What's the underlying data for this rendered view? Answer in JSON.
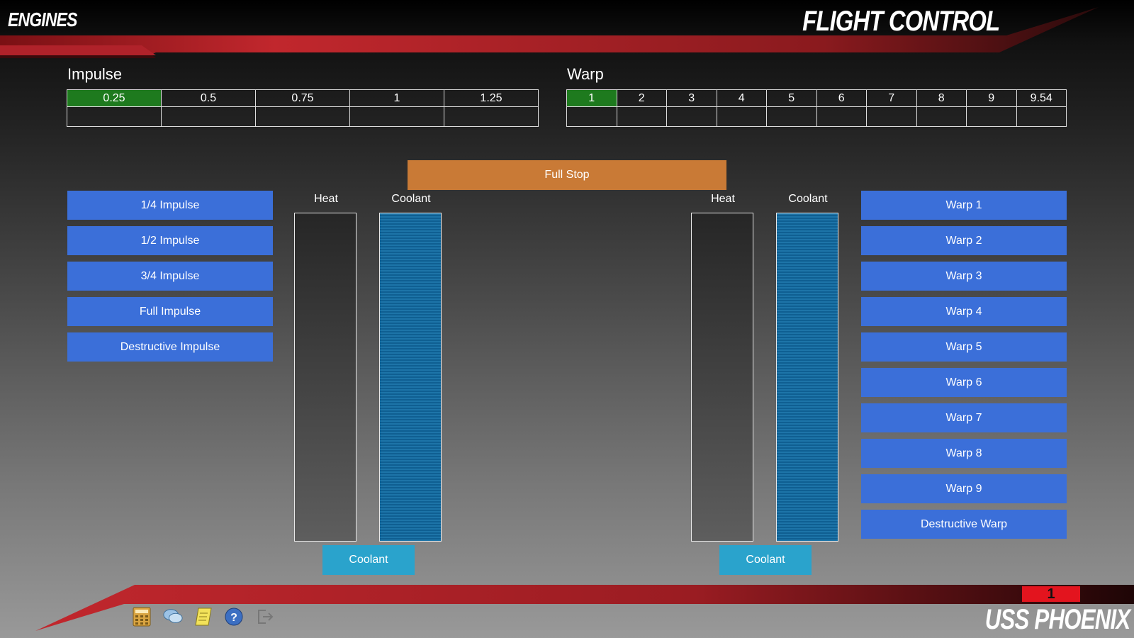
{
  "header": {
    "station": "ENGINES",
    "screen": "FLIGHT CONTROL"
  },
  "impulse": {
    "title": "Impulse",
    "speeds": [
      "0.25",
      "0.5",
      "0.75",
      "1",
      "1.25"
    ],
    "active_index": 0,
    "buttons": [
      "1/4 Impulse",
      "1/2 Impulse",
      "3/4 Impulse",
      "Full Impulse",
      "Destructive Impulse"
    ],
    "heat_label": "Heat",
    "coolant_label": "Coolant",
    "heat_level": 0.0,
    "coolant_level": 1.0,
    "coolant_button": "Coolant"
  },
  "warp": {
    "title": "Warp",
    "speeds": [
      "1",
      "2",
      "3",
      "4",
      "5",
      "6",
      "7",
      "8",
      "9",
      "9.54"
    ],
    "active_index": 0,
    "buttons": [
      "Warp 1",
      "Warp 2",
      "Warp 3",
      "Warp 4",
      "Warp 5",
      "Warp 6",
      "Warp 7",
      "Warp 8",
      "Warp 9",
      "Destructive Warp"
    ],
    "heat_label": "Heat",
    "coolant_label": "Coolant",
    "heat_level": 0.0,
    "coolant_level": 1.0,
    "coolant_button": "Coolant"
  },
  "full_stop": "Full Stop",
  "footer": {
    "alert": "1",
    "ship": "USS PHOENIX",
    "toolbar_icons": [
      "calculator-icon",
      "chat-icon",
      "notes-icon",
      "help-icon",
      "logout-icon"
    ]
  },
  "colors": {
    "button_blue": "#3b6fd9",
    "full_stop_orange": "#c97a36",
    "coolant_cyan": "#2aa3cc",
    "active_green": "#1e7a1e",
    "header_red": "#c1272d",
    "alert_red": "#e3141e"
  }
}
